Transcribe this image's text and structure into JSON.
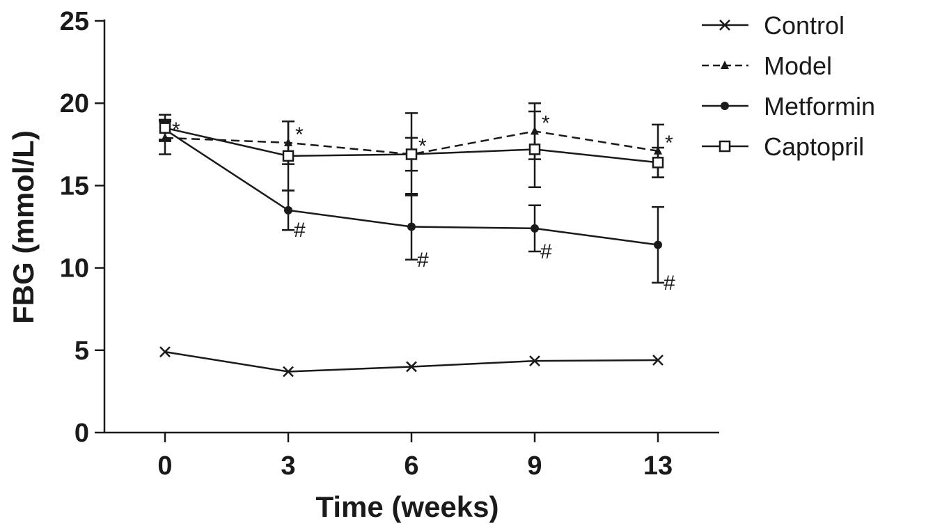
{
  "chart_data": {
    "type": "line",
    "title": "",
    "xlabel": "Time (weeks)",
    "ylabel": "FBG (mmol/L)",
    "categories": [
      "0",
      "3",
      "6",
      "9",
      "13"
    ],
    "ylim": [
      0,
      25
    ],
    "yticks": [
      "0",
      "5",
      "10",
      "15",
      "20",
      "25"
    ],
    "grid": false,
    "legend_position": "top-right",
    "series": [
      {
        "name": "Control",
        "marker": "x",
        "dashed": false,
        "values": [
          4.9,
          3.7,
          4.0,
          4.35,
          4.4
        ],
        "errors": [
          0,
          0,
          0,
          0,
          0
        ],
        "annotations": [
          "",
          "",
          "",
          "",
          ""
        ]
      },
      {
        "name": "Model",
        "marker": "triangle",
        "dashed": true,
        "values": [
          17.9,
          17.6,
          16.9,
          18.3,
          17.1
        ],
        "errors": [
          1.0,
          1.3,
          2.5,
          1.7,
          1.6
        ],
        "annotations": [
          "*",
          "*",
          "*",
          "*",
          "*"
        ]
      },
      {
        "name": "Metformin",
        "marker": "circle",
        "dashed": false,
        "values": [
          18.4,
          13.5,
          12.5,
          12.4,
          11.4
        ],
        "errors": [
          0.6,
          1.2,
          2.0,
          1.4,
          2.3
        ],
        "annotations": [
          "",
          "#",
          "#",
          "#",
          "#"
        ]
      },
      {
        "name": "Captopril",
        "marker": "square",
        "dashed": false,
        "values": [
          18.5,
          16.8,
          16.9,
          17.2,
          16.4
        ],
        "errors": [
          0.8,
          2.1,
          1.0,
          2.3,
          0.9
        ],
        "annotations": [
          "",
          "",
          "",
          "",
          ""
        ]
      }
    ]
  }
}
